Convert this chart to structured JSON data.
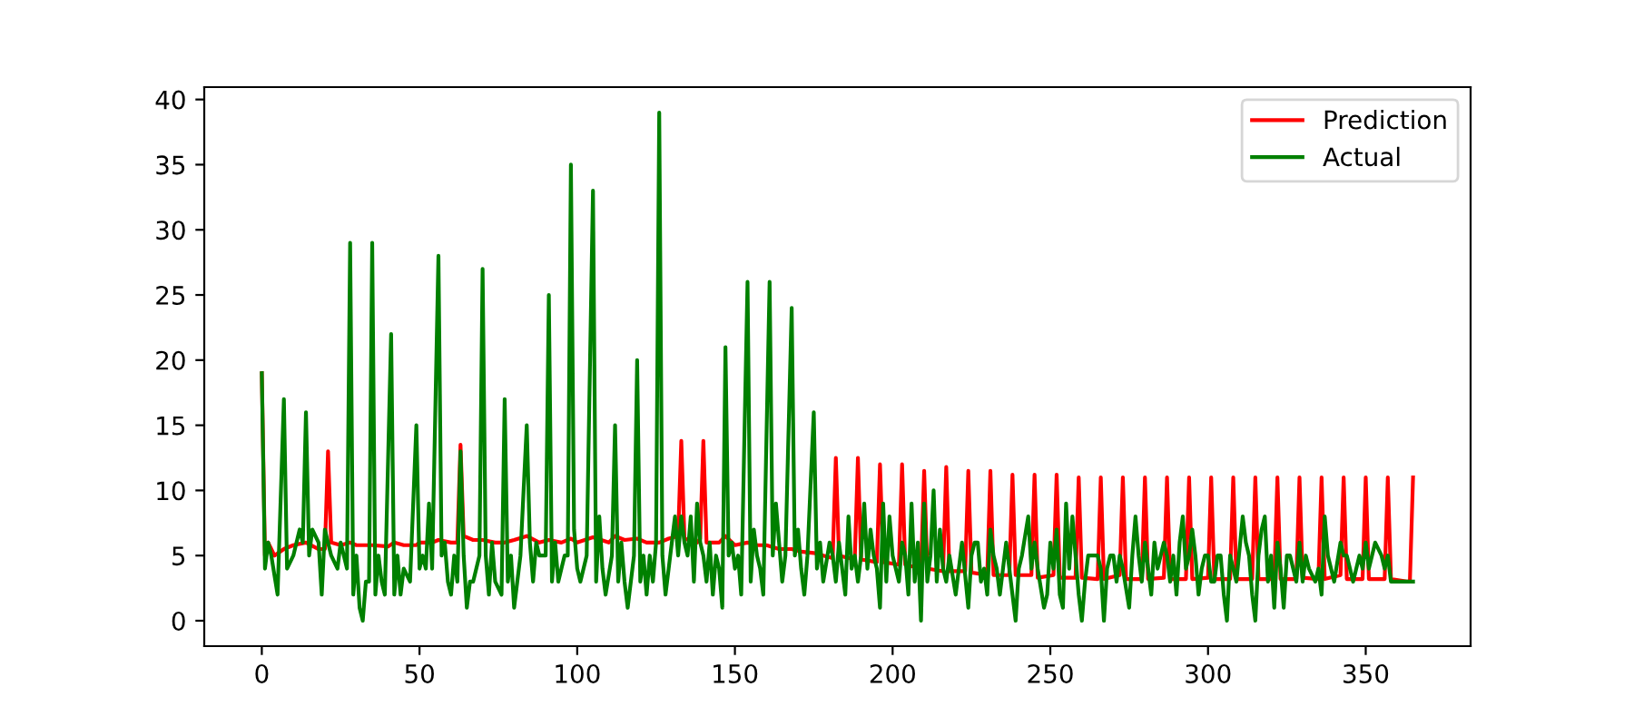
{
  "chart_data": {
    "type": "line",
    "series": [
      {
        "name": "Prediction",
        "color": "#ff0000",
        "x": [
          0,
          1,
          2,
          3,
          4,
          7,
          10,
          14,
          18,
          20,
          21,
          22,
          25,
          28,
          30,
          35,
          40,
          42,
          45,
          49,
          50,
          54,
          56,
          60,
          62,
          63,
          64,
          67,
          70,
          74,
          77,
          80,
          84,
          88,
          91,
          95,
          98,
          100,
          105,
          110,
          112,
          115,
          119,
          122,
          126,
          129,
          132,
          133,
          134,
          138,
          139,
          140,
          141,
          145,
          147,
          150,
          154,
          157,
          160,
          164,
          168,
          171,
          175,
          178,
          181,
          182,
          183,
          188,
          189,
          190,
          195,
          196,
          197,
          202,
          203,
          204,
          209,
          210,
          211,
          216,
          217,
          218,
          223,
          224,
          225,
          230,
          231,
          232,
          237,
          238,
          239,
          244,
          245,
          246,
          251,
          252,
          253,
          258,
          259,
          260,
          265,
          266,
          267,
          272,
          273,
          274,
          279,
          280,
          281,
          286,
          287,
          288,
          293,
          294,
          295,
          300,
          301,
          302,
          307,
          308,
          309,
          314,
          315,
          316,
          321,
          322,
          323,
          328,
          329,
          330,
          335,
          336,
          337,
          342,
          343,
          344,
          349,
          350,
          351,
          356,
          357,
          358,
          363,
          364,
          365
        ],
        "values": [
          19,
          5,
          6,
          5.5,
          5,
          5.5,
          5.8,
          6,
          5.5,
          5.5,
          13,
          6,
          5.8,
          6,
          5.8,
          5.8,
          5.7,
          6,
          5.8,
          5.8,
          6,
          6,
          6.2,
          6,
          6,
          13.5,
          6.5,
          6.2,
          6.2,
          6,
          6,
          6.2,
          6.5,
          6,
          6.2,
          6,
          6.3,
          6,
          6.4,
          6,
          6.5,
          6.2,
          6.3,
          6,
          6,
          6.3,
          6.5,
          13.8,
          6.3,
          6,
          6.3,
          13.8,
          6,
          6,
          6.5,
          5.8,
          6,
          5.8,
          5.8,
          5.5,
          5.5,
          5.3,
          5.2,
          5,
          4.8,
          12.5,
          5,
          4.7,
          12.5,
          4.7,
          4.5,
          12,
          4.5,
          4.3,
          12,
          4.3,
          4,
          11.5,
          4,
          3.8,
          11.8,
          3.8,
          3.8,
          11.5,
          3.7,
          3.5,
          11.5,
          3.5,
          3.5,
          11.2,
          3.5,
          3.5,
          11.2,
          3.3,
          3.5,
          11.2,
          3.3,
          3.3,
          11,
          3.3,
          3.2,
          11,
          3.2,
          3.5,
          11,
          3.2,
          3.2,
          11,
          3.2,
          3.3,
          11,
          3.2,
          3.2,
          11,
          3.2,
          3.3,
          11,
          3.2,
          3.2,
          11,
          3.2,
          3.2,
          11,
          3.2,
          3.2,
          11,
          3.2,
          3.2,
          11,
          3.3,
          3.2,
          11,
          3.2,
          3.5,
          11,
          3.2,
          3.2,
          11,
          3.2,
          3.2,
          11,
          3.2,
          3,
          3,
          11
        ]
      },
      {
        "name": "Actual",
        "color": "#008000",
        "x": [
          0,
          1,
          2,
          3,
          5,
          7,
          8,
          10,
          12,
          13,
          14,
          15,
          16,
          18,
          19,
          20,
          22,
          24,
          25,
          27,
          28,
          29,
          30,
          31,
          32,
          33,
          34,
          35,
          36,
          37,
          38,
          39,
          41,
          42,
          43,
          44,
          45,
          47,
          49,
          50,
          51,
          52,
          53,
          54,
          56,
          57,
          58,
          59,
          60,
          61,
          62,
          63,
          64,
          65,
          66,
          67,
          69,
          70,
          71,
          72,
          73,
          74,
          76,
          77,
          78,
          79,
          80,
          81,
          82,
          84,
          85,
          86,
          87,
          88,
          90,
          91,
          92,
          93,
          94,
          95,
          96,
          97,
          98,
          99,
          100,
          101,
          103,
          105,
          106,
          107,
          108,
          109,
          111,
          112,
          113,
          114,
          115,
          116,
          118,
          119,
          120,
          121,
          122,
          123,
          124,
          125,
          126,
          127,
          128,
          129,
          130,
          131,
          132,
          133,
          134,
          135,
          136,
          137,
          138,
          139,
          140,
          141,
          142,
          143,
          144,
          145,
          146,
          147,
          148,
          149,
          150,
          151,
          152,
          154,
          155,
          156,
          157,
          158,
          159,
          161,
          162,
          163,
          164,
          165,
          166,
          168,
          169,
          170,
          171,
          172,
          173,
          175,
          176,
          177,
          178,
          180,
          181,
          182,
          183,
          184,
          185,
          186,
          187,
          188,
          189,
          190,
          191,
          192,
          193,
          194,
          195,
          196,
          197,
          198,
          199,
          200,
          201,
          202,
          203,
          204,
          205,
          206,
          207,
          208,
          209,
          210,
          211,
          212,
          213,
          214,
          215,
          216,
          217,
          218,
          220,
          221,
          222,
          224,
          225,
          226,
          227,
          228,
          229,
          230,
          231,
          232,
          233,
          234,
          236,
          238,
          239,
          240,
          241,
          243,
          244,
          245,
          246,
          248,
          249,
          250,
          251,
          252,
          253,
          254,
          255,
          256,
          257,
          259,
          260,
          261,
          262,
          264,
          265,
          266,
          267,
          268,
          269,
          270,
          271,
          272,
          273,
          275,
          276,
          277,
          278,
          279,
          280,
          281,
          282,
          283,
          284,
          285,
          286,
          287,
          288,
          289,
          290,
          291,
          292,
          293,
          294,
          295,
          296,
          297,
          298,
          299,
          300,
          301,
          302,
          303,
          304,
          305,
          306,
          307,
          308,
          309,
          311,
          312,
          313,
          314,
          315,
          316,
          317,
          318,
          319,
          320,
          321,
          322,
          323,
          324,
          325,
          326,
          328,
          329,
          330,
          331,
          332,
          334,
          335,
          336,
          337,
          338,
          339,
          340,
          342,
          343,
          344,
          345,
          346,
          348,
          349,
          350,
          351,
          352,
          353,
          355,
          356,
          357,
          358,
          360,
          362,
          365
        ],
        "values": [
          19,
          4,
          6,
          5,
          2,
          17,
          4,
          5,
          7,
          6,
          16,
          5,
          7,
          6,
          2,
          7,
          5,
          4,
          6,
          4,
          29,
          2,
          5,
          1,
          0,
          3,
          3,
          29,
          2,
          5,
          3,
          2,
          22,
          2,
          5,
          2,
          4,
          3,
          15,
          4,
          5,
          4,
          9,
          4,
          28,
          5,
          6,
          3,
          2,
          5,
          3,
          13,
          5,
          1,
          3,
          3,
          5,
          27,
          5,
          2,
          6,
          3,
          2,
          17,
          3,
          5,
          1,
          3,
          5,
          15,
          6,
          3,
          6,
          5,
          5,
          25,
          3,
          6,
          3,
          4,
          5,
          5,
          35,
          7,
          4,
          3,
          5,
          33,
          3,
          8,
          4,
          2,
          5,
          15,
          3,
          6,
          3,
          1,
          5,
          20,
          3,
          5,
          2,
          5,
          3,
          6,
          39,
          5,
          2,
          4,
          6,
          8,
          5,
          8,
          6,
          5,
          8,
          3,
          9,
          6,
          5,
          3,
          6,
          2,
          5,
          4,
          1,
          21,
          5,
          6,
          4,
          5,
          2,
          26,
          3,
          7,
          5,
          4,
          2,
          26,
          5,
          9,
          6,
          3,
          5,
          24,
          5,
          7,
          4,
          2,
          5,
          16,
          4,
          6,
          3,
          6,
          5,
          3,
          6,
          4,
          2,
          8,
          4,
          5,
          3,
          5,
          9,
          4,
          7,
          5,
          4,
          1,
          9,
          3,
          8,
          5,
          4,
          3,
          6,
          5,
          2,
          9,
          3,
          6,
          0,
          9,
          3,
          5,
          10,
          3,
          7,
          4,
          3,
          5,
          2,
          4,
          6,
          1,
          5,
          6,
          6,
          3,
          4,
          2,
          7,
          5,
          4,
          2,
          6,
          2,
          0,
          4,
          5,
          8,
          4,
          6,
          4,
          1,
          2,
          6,
          4,
          7,
          2,
          1,
          9,
          4,
          8,
          2,
          0,
          3,
          5,
          5,
          5,
          4,
          0,
          4,
          5,
          5,
          3,
          5,
          4,
          1,
          5,
          8,
          5,
          3,
          6,
          4,
          2,
          6,
          4,
          5,
          6,
          5,
          3,
          5,
          2,
          6,
          8,
          4,
          5,
          7,
          5,
          2,
          4,
          5,
          5,
          3,
          3,
          5,
          5,
          2,
          0,
          5,
          4,
          3,
          8,
          6,
          5,
          2,
          0,
          5,
          7,
          8,
          3,
          5,
          1,
          6,
          4,
          1,
          5,
          5,
          3,
          6,
          3,
          5,
          4,
          3,
          4,
          2,
          8,
          5,
          4,
          3,
          6,
          5,
          5,
          4,
          3,
          5,
          4,
          6,
          4,
          5,
          6,
          5,
          4,
          5,
          3,
          3,
          3,
          3
        ]
      }
    ],
    "xlim": [
      -18.25,
      383.25
    ],
    "ylim": [
      -1.95,
      40.95
    ],
    "xticks": [
      0,
      50,
      100,
      150,
      200,
      250,
      300,
      350
    ],
    "yticks": [
      0,
      5,
      10,
      15,
      20,
      25,
      30,
      35,
      40
    ],
    "legend": "top right",
    "grid": false
  }
}
